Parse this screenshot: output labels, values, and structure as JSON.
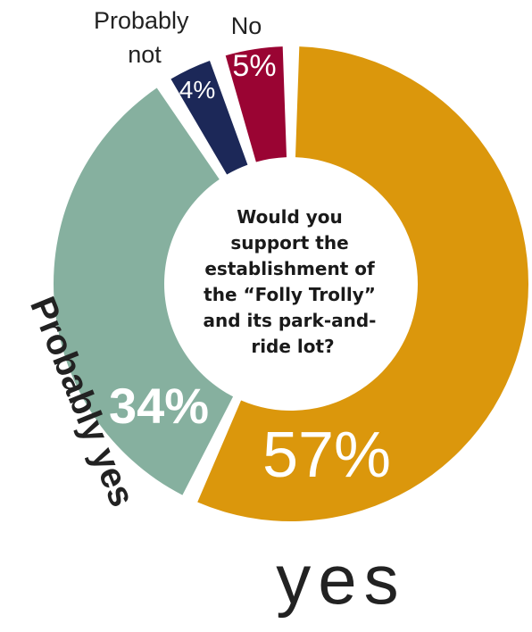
{
  "chart_data": {
    "type": "pie",
    "title": "Would you support the establishment of the “Folly Trolly” and its park-and-ride lot?",
    "title_lines": [
      "Would you",
      "support the",
      "establishment of",
      "the “Folly Trolly”",
      "and its park-and-",
      "ride lot?"
    ],
    "categories": [
      "yes",
      "Probably yes",
      "Probably not",
      "No"
    ],
    "values": [
      57,
      34,
      4,
      5
    ],
    "value_labels": [
      "57%",
      "34%",
      "4%",
      "5%"
    ],
    "category_labels": {
      "yes": "yes",
      "probably_yes": "Probably yes",
      "probably_not_line1": "Probably",
      "probably_not_line2": "not",
      "no": "No"
    },
    "colors": [
      "#db970c",
      "#86b09f",
      "#1c2858",
      "#9a0433"
    ],
    "donut": true
  }
}
